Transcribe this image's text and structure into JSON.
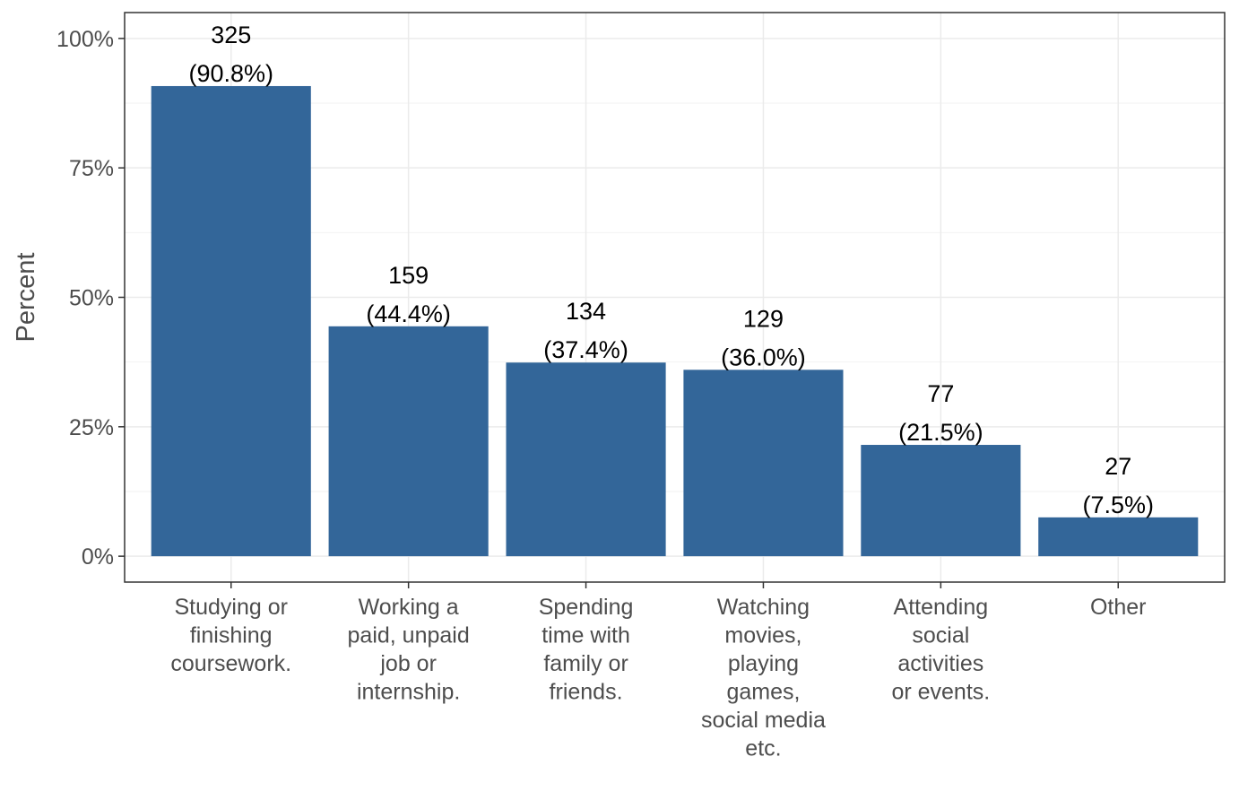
{
  "chart_data": {
    "type": "bar",
    "title": "",
    "xlabel": "",
    "ylabel": "Percent",
    "ylim": [
      -0.05,
      1.05
    ],
    "y_ticks": [
      {
        "value": 0,
        "label": "0%"
      },
      {
        "value": 0.25,
        "label": "25%"
      },
      {
        "value": 0.5,
        "label": "50%"
      },
      {
        "value": 0.75,
        "label": "75%"
      },
      {
        "value": 1.0,
        "label": "100%"
      }
    ],
    "grid": true,
    "legend": "none",
    "bar_color": "#336699",
    "categories": [
      [
        "Studying or",
        "finishing",
        "coursework."
      ],
      [
        "Working a",
        "paid, unpaid",
        "job or",
        "internship."
      ],
      [
        "Spending",
        "time with",
        "family or",
        "friends."
      ],
      [
        "Watching",
        "movies,",
        "playing",
        "games,",
        "social media",
        "etc."
      ],
      [
        "Attending",
        "social",
        "activities",
        "or events."
      ],
      [
        "Other"
      ]
    ],
    "values": [
      0.908,
      0.444,
      0.374,
      0.36,
      0.215,
      0.075
    ],
    "counts": [
      325,
      159,
      134,
      129,
      77,
      27
    ],
    "labels": [
      [
        "325",
        "(90.8%)"
      ],
      [
        "159",
        "(44.4%)"
      ],
      [
        "134",
        "(37.4%)"
      ],
      [
        "129",
        "(36.0%)"
      ],
      [
        "77",
        "(21.5%)"
      ],
      [
        "27",
        "(7.5%)"
      ]
    ]
  }
}
